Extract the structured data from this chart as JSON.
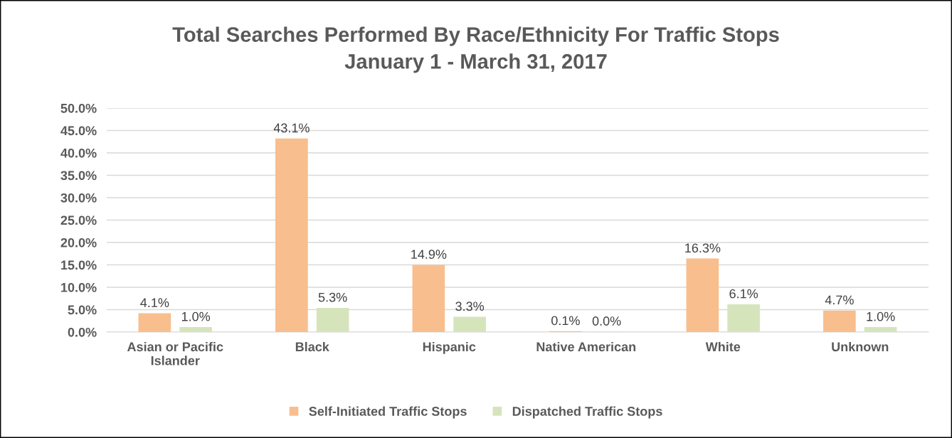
{
  "chart_data": {
    "type": "bar",
    "title": "Total Searches Performed By Race/Ethnicity For Traffic Stops\nJanuary 1 - March 31, 2017",
    "categories": [
      "Asian or Pacific\nIslander",
      "Black",
      "Hispanic",
      "Native American",
      "White",
      "Unknown"
    ],
    "series": [
      {
        "name": "Self-Initiated Traffic Stops",
        "color": "#f8be8e",
        "values": [
          4.1,
          43.1,
          14.9,
          0.1,
          16.3,
          4.7
        ],
        "value_labels": [
          "4.1%",
          "43.1%",
          "14.9%",
          "0.1%",
          "16.3%",
          "4.7%"
        ]
      },
      {
        "name": "Dispatched Traffic Stops",
        "color": "#d6e4bc",
        "values": [
          1.0,
          5.3,
          3.3,
          0.0,
          6.1,
          1.0
        ],
        "value_labels": [
          "1.0%",
          "5.3%",
          "3.3%",
          "0.0%",
          "6.1%",
          "1.0%"
        ]
      }
    ],
    "ylim": [
      0,
      50
    ],
    "yticks": [
      {
        "value": 0,
        "label": "0.0%"
      },
      {
        "value": 5,
        "label": "5.0%"
      },
      {
        "value": 10,
        "label": "10.0%"
      },
      {
        "value": 15,
        "label": "15.0%"
      },
      {
        "value": 20,
        "label": "20.0%"
      },
      {
        "value": 25,
        "label": "25.0%"
      },
      {
        "value": 30,
        "label": "30.0%"
      },
      {
        "value": 35,
        "label": "35.0%"
      },
      {
        "value": 40,
        "label": "40.0%"
      },
      {
        "value": 45,
        "label": "45.0%"
      },
      {
        "value": 50,
        "label": "50.0%"
      }
    ],
    "grid": "y",
    "legend": "bottom"
  }
}
